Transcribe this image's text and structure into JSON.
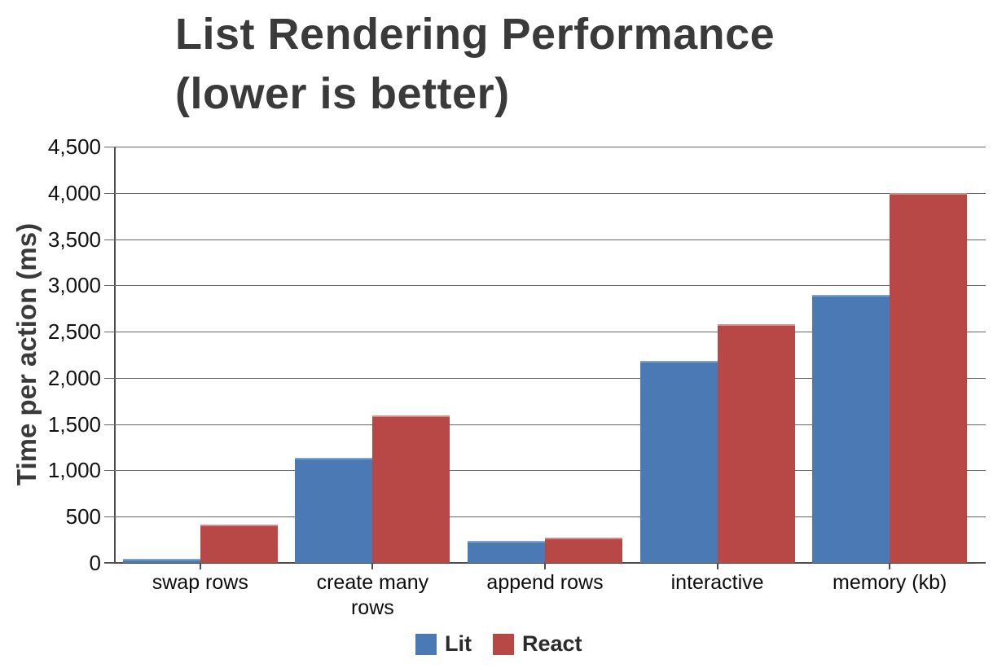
{
  "chart_data": {
    "type": "bar",
    "title": "List Rendering Performance (lower is better)",
    "title_lines": [
      "List Rendering Performance",
      "(lower is better)"
    ],
    "ylabel": "Time per action (ms)",
    "xlabel": "",
    "categories": [
      "swap rows",
      "create many rows",
      "append rows",
      "interactive",
      "memory (kb)"
    ],
    "series": [
      {
        "name": "Lit",
        "color": "#4a79b4",
        "highlight": "#7fa3d1",
        "values": [
          45,
          1140,
          240,
          2180,
          2900
        ]
      },
      {
        "name": "React",
        "color": "#b84845",
        "highlight": "#cf8d8b",
        "values": [
          410,
          1590,
          275,
          2580,
          4000
        ]
      }
    ],
    "ylim": [
      0,
      4500
    ],
    "ytick_step": 500,
    "ytick_labels": [
      "0",
      "500",
      "1,000",
      "1,500",
      "2,000",
      "2,500",
      "3,000",
      "3,500",
      "4,000",
      "4,500"
    ],
    "grid": true,
    "legend_position": "bottom"
  },
  "colors": {
    "background": "#ffffff",
    "title": "#3a3a3a",
    "axis_line": "#4d4d4d",
    "gridline": "#666666",
    "tick_text": "#111111"
  }
}
